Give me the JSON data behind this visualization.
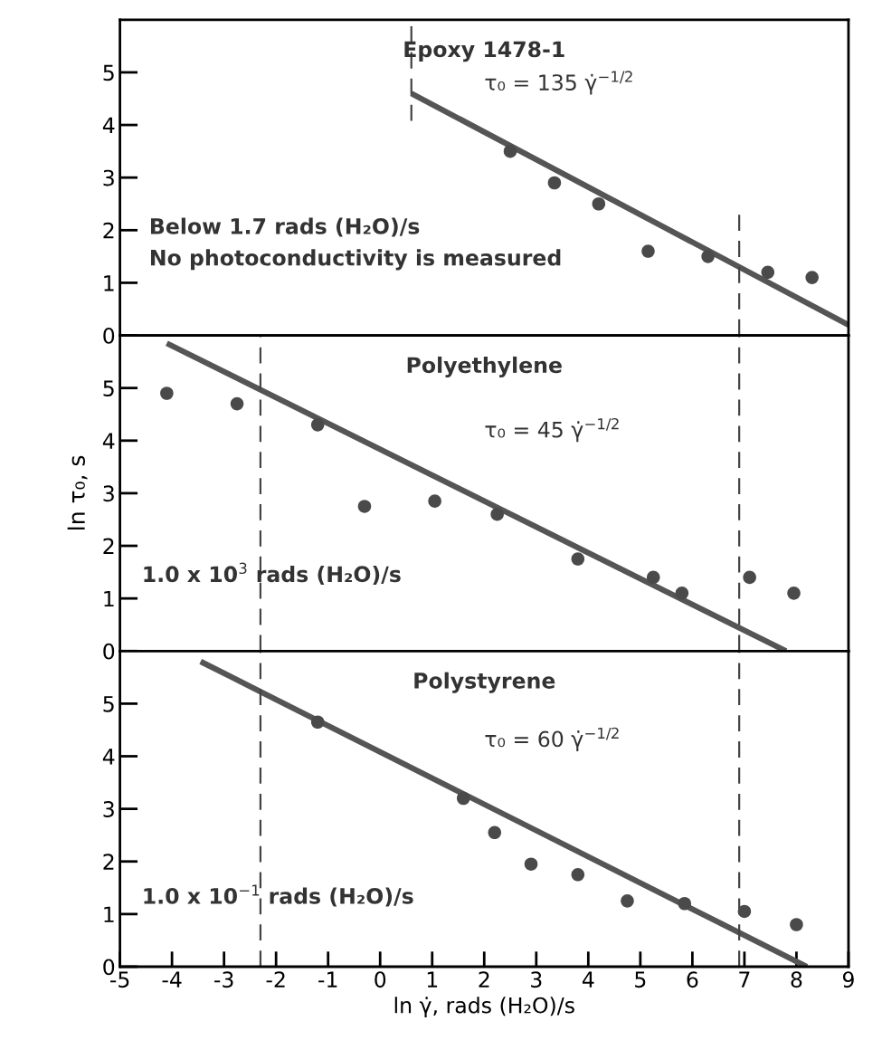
{
  "chart_data": [
    {
      "type": "scatter",
      "title": "Epoxy 1478-1",
      "xlim": [
        -5,
        9
      ],
      "ylim": [
        0,
        6
      ],
      "yticks": [
        0,
        1,
        2,
        3,
        4,
        5
      ],
      "tick_labels": "y",
      "grid": false,
      "marker": "circle",
      "annotations": [
        "τ₀ = 135 γ̇$^{−1/2}$",
        "Below 1.7 rads (H₂O)/s",
        "No photoconductivity is measured"
      ],
      "ref_lines": [
        {
          "axis": "x",
          "value": 0.6,
          "line_style": "dashed",
          "color": "#444444"
        },
        {
          "axis": "x",
          "value": 6.9,
          "line_style": "dashed",
          "color": "#444444"
        }
      ],
      "series": [
        {
          "color": "#4a4a4a",
          "x": [
            2.5,
            3.35,
            4.2,
            5.15,
            6.3,
            7.45,
            8.3
          ],
          "values": [
            3.5,
            2.9,
            2.5,
            1.6,
            1.5,
            1.2,
            1.1
          ]
        },
        {
          "type": "line",
          "marker": "none",
          "color": "#555555",
          "x": [
            0.6,
            9.0
          ],
          "values": [
            4.6,
            0.2
          ]
        }
      ]
    },
    {
      "type": "scatter",
      "title": "Polyethylene",
      "xlim": [
        -5,
        9
      ],
      "ylim": [
        0,
        6
      ],
      "yticks": [
        0,
        1,
        2,
        3,
        4,
        5
      ],
      "tick_labels": "y",
      "ylabel": "ln τ₀, s",
      "grid": false,
      "marker": "circle",
      "annotations": [
        "τ₀ = 45 γ̇$^{−1/2}$",
        "1.0 x 10$^{3}$ rads (H₂O)/s"
      ],
      "ref_lines": [
        {
          "axis": "x",
          "value": -2.3,
          "line_style": "dashed",
          "color": "#444444"
        },
        {
          "axis": "x",
          "value": 6.9,
          "line_style": "dashed",
          "color": "#444444"
        }
      ],
      "series": [
        {
          "color": "#4a4a4a",
          "x": [
            -4.1,
            -2.75,
            -1.2,
            -0.3,
            1.05,
            2.25,
            3.8,
            5.25,
            5.8,
            7.1,
            7.95
          ],
          "values": [
            4.9,
            4.7,
            4.3,
            2.75,
            2.85,
            2.6,
            1.75,
            1.4,
            1.1,
            1.4,
            1.1
          ]
        },
        {
          "type": "line",
          "marker": "none",
          "color": "#555555",
          "x": [
            -4.1,
            7.8
          ],
          "values": [
            5.85,
            0.0
          ]
        }
      ]
    },
    {
      "type": "scatter",
      "title": "Polystyrene",
      "xlim": [
        -5,
        9
      ],
      "ylim": [
        0,
        6
      ],
      "yticks": [
        0,
        1,
        2,
        3,
        4,
        5
      ],
      "xticks": [
        -5,
        -4,
        -3,
        -2,
        -1,
        0,
        1,
        2,
        3,
        4,
        5,
        6,
        7,
        8,
        9
      ],
      "xlabel": "ln γ̇, rads (H₂O)/s",
      "grid": false,
      "marker": "circle",
      "annotations": [
        "τ₀ = 60 γ̇$^{−1/2}$",
        "1.0 x 10$^{−1}$ rads (H₂O)/s"
      ],
      "ref_lines": [
        {
          "axis": "x",
          "value": -2.3,
          "line_style": "dashed",
          "color": "#444444"
        },
        {
          "axis": "x",
          "value": 6.9,
          "line_style": "dashed",
          "color": "#444444"
        }
      ],
      "series": [
        {
          "color": "#4a4a4a",
          "x": [
            -1.2,
            1.6,
            2.2,
            2.9,
            3.8,
            4.75,
            5.85,
            7.0,
            8.0
          ],
          "values": [
            4.65,
            3.2,
            2.55,
            1.95,
            1.75,
            1.25,
            1.2,
            1.05,
            0.8
          ]
        },
        {
          "type": "line",
          "marker": "none",
          "color": "#555555",
          "x": [
            -3.45,
            8.2
          ],
          "values": [
            5.8,
            0.0
          ]
        }
      ]
    }
  ]
}
